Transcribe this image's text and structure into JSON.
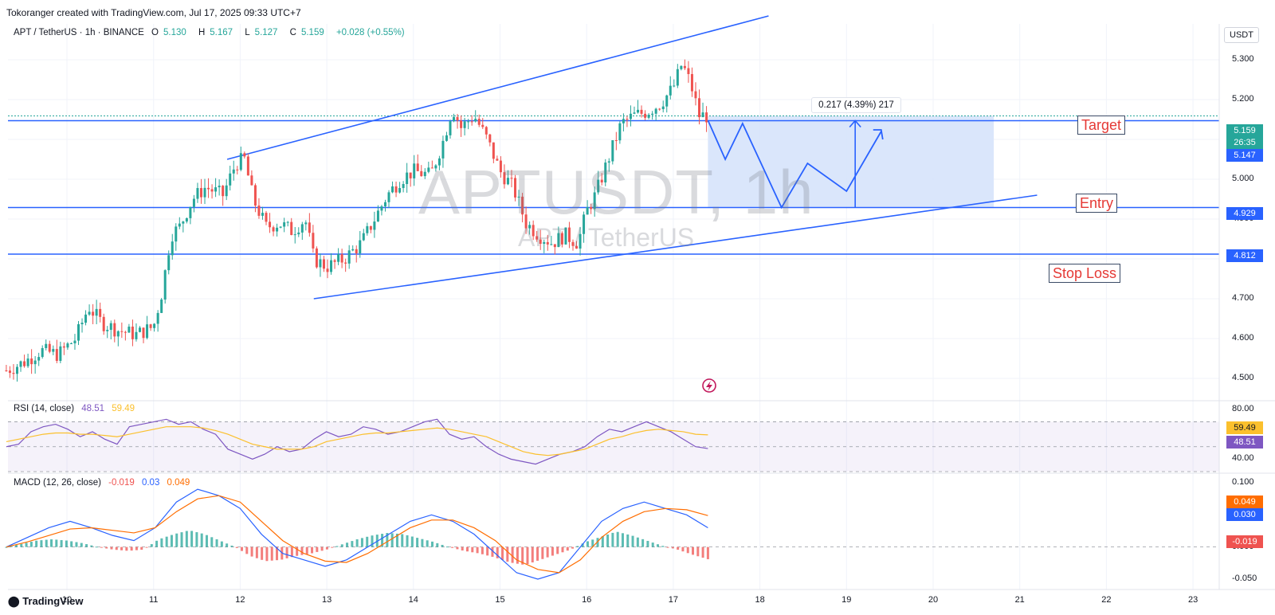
{
  "header": {
    "credit": "Tokoranger created with TradingView.com, Jul 17, 2025 09:33 UTC+7"
  },
  "symbol_legend": {
    "title": "APT / TetherUS · 1h · BINANCE",
    "open_label": "O",
    "open": "5.130",
    "high_label": "H",
    "high": "5.167",
    "low_label": "L",
    "low": "5.127",
    "close_label": "C",
    "close": "5.159",
    "change": "+0.028 (+0.55%)"
  },
  "currency_button": "USDT",
  "watermark": {
    "symbol": "APTUSDT, 1h",
    "description": "APT / TetherUS"
  },
  "annotations": {
    "target": "Target",
    "entry": "Entry",
    "stop_loss": "Stop Loss",
    "measure": "0.217 (4.39%) 217"
  },
  "price_tags": {
    "last": "5.159",
    "countdown": "26:35",
    "prev": "5.147",
    "entry": "4.929",
    "stop": "4.812",
    "rsi_ma": "59.49",
    "rsi": "48.51",
    "macd_signal": "0.049",
    "macd": "0.030",
    "macd_hist": "-0.019"
  },
  "colors": {
    "up": "#26a69a",
    "down": "#ef5350",
    "line": "#2962ff",
    "target_zone": "#d6e3fb",
    "rsi": "#7e57c2",
    "rsi_ma": "#fbc02d",
    "macd": "#2962ff",
    "signal": "#ff6d00",
    "label_red": "#e53935"
  },
  "icons": {
    "trading_view_logo": "tradingview-logo-icon",
    "flash": "flash-icon"
  },
  "footer": {
    "logo": "TradingView"
  },
  "chart_data": [
    {
      "type": "candlestick",
      "title": "APT / TetherUS · 1h · BINANCE",
      "y_axis_ticks": [
        "5.300",
        "5.200",
        "5.100",
        "5.000",
        "4.900",
        "4.800",
        "4.700",
        "4.600",
        "4.500"
      ],
      "x_axis_ticks": [
        "10",
        "11",
        "12",
        "13",
        "14",
        "15",
        "16",
        "17",
        "18",
        "19",
        "20",
        "21",
        "22",
        "23"
      ],
      "ylim": [
        4.45,
        5.37
      ],
      "close_path": [
        [
          9.3,
          4.52
        ],
        [
          9.5,
          4.54
        ],
        [
          9.7,
          4.57
        ],
        [
          9.9,
          4.56
        ],
        [
          10.1,
          4.6
        ],
        [
          10.25,
          4.68
        ],
        [
          10.4,
          4.64
        ],
        [
          10.6,
          4.62
        ],
        [
          10.8,
          4.61
        ],
        [
          11.0,
          4.63
        ],
        [
          11.1,
          4.72
        ],
        [
          11.2,
          4.86
        ],
        [
          11.3,
          4.88
        ],
        [
          11.45,
          4.95
        ],
        [
          11.6,
          4.98
        ],
        [
          11.8,
          4.96
        ],
        [
          11.95,
          5.04
        ],
        [
          12.05,
          5.05
        ],
        [
          12.15,
          4.95
        ],
        [
          12.3,
          4.88
        ],
        [
          12.45,
          4.89
        ],
        [
          12.6,
          4.87
        ],
        [
          12.75,
          4.9
        ],
        [
          12.85,
          4.8
        ],
        [
          13.0,
          4.78
        ],
        [
          13.2,
          4.8
        ],
        [
          13.4,
          4.84
        ],
        [
          13.55,
          4.9
        ],
        [
          13.7,
          4.96
        ],
        [
          13.85,
          5.0
        ],
        [
          14.0,
          5.02
        ],
        [
          14.2,
          5.01
        ],
        [
          14.35,
          5.1
        ],
        [
          14.45,
          5.18
        ],
        [
          14.55,
          5.13
        ],
        [
          14.7,
          5.16
        ],
        [
          14.85,
          5.1
        ],
        [
          15.0,
          5.02
        ],
        [
          15.15,
          4.98
        ],
        [
          15.3,
          4.89
        ],
        [
          15.45,
          4.86
        ],
        [
          15.6,
          4.84
        ],
        [
          15.75,
          4.86
        ],
        [
          15.9,
          4.84
        ],
        [
          16.0,
          4.92
        ],
        [
          16.1,
          4.96
        ],
        [
          16.25,
          5.05
        ],
        [
          16.4,
          5.14
        ],
        [
          16.55,
          5.16
        ],
        [
          16.7,
          5.17
        ],
        [
          16.85,
          5.19
        ],
        [
          17.0,
          5.23
        ],
        [
          17.1,
          5.29
        ],
        [
          17.2,
          5.24
        ],
        [
          17.3,
          5.16
        ],
        [
          17.4,
          5.159
        ]
      ],
      "levels": {
        "target": 5.147,
        "entry": 4.929,
        "stop_loss": 4.812,
        "last": 5.159
      },
      "target_zone": {
        "x": [
          17.4,
          20.7
        ],
        "y": [
          4.929,
          5.159
        ]
      },
      "upper_channel": [
        [
          11.85,
          5.05
        ],
        [
          18.1,
          5.41
        ]
      ],
      "lower_channel": [
        [
          12.85,
          4.7
        ],
        [
          21.2,
          4.96
        ]
      ],
      "projected_path": [
        [
          17.4,
          5.148
        ],
        [
          17.6,
          5.05
        ],
        [
          17.8,
          5.14
        ],
        [
          18.25,
          4.929
        ],
        [
          18.55,
          5.04
        ],
        [
          19.0,
          4.97
        ],
        [
          19.4,
          5.12
        ]
      ],
      "measure": {
        "from": 4.929,
        "to": 5.147,
        "text": "0.217 (4.39%) 217"
      }
    },
    {
      "type": "line",
      "title": "RSI (14, close)",
      "series": [
        {
          "name": "RSI",
          "last": 48.51,
          "values": [
            50,
            52,
            62,
            66,
            68,
            64,
            58,
            62,
            56,
            52,
            66,
            68,
            70,
            72,
            68,
            70,
            64,
            60,
            48,
            44,
            40,
            44,
            50,
            46,
            48,
            56,
            62,
            58,
            60,
            66,
            64,
            60,
            62,
            66,
            70,
            72,
            60,
            56,
            58,
            50,
            44,
            40,
            38,
            36,
            40,
            44,
            46,
            50,
            58,
            64,
            62,
            66,
            70,
            66,
            62,
            56,
            50,
            48.51
          ]
        },
        {
          "name": "RSI MA",
          "last": 59.49,
          "values": [
            54,
            56,
            58,
            60,
            61,
            61,
            60,
            60,
            59,
            58,
            60,
            62,
            64,
            66,
            66,
            66,
            65,
            63,
            60,
            56,
            52,
            50,
            48,
            48,
            48,
            50,
            54,
            56,
            58,
            60,
            61,
            61,
            62,
            63,
            64,
            65,
            64,
            62,
            60,
            58,
            54,
            50,
            46,
            44,
            43,
            44,
            46,
            48,
            52,
            56,
            58,
            61,
            63,
            64,
            63,
            62,
            60,
            59.49
          ]
        }
      ],
      "y_axis_ticks": [
        "80.00",
        "40.00"
      ],
      "ylim": [
        30,
        85
      ]
    },
    {
      "type": "line",
      "title": "MACD (12, 26, close)",
      "series": [
        {
          "name": "histogram",
          "last": -0.019,
          "values": [
            0.0,
            0.005,
            0.01,
            0.012,
            0.01,
            0.006,
            0.0,
            -0.004,
            -0.006,
            -0.004,
            0.012,
            0.02,
            0.026,
            0.02,
            0.01,
            0.0,
            -0.014,
            -0.022,
            -0.02,
            -0.014,
            -0.01,
            -0.004,
            0.004,
            0.012,
            0.018,
            0.022,
            0.02,
            0.014,
            0.008,
            0.0,
            -0.006,
            -0.01,
            -0.016,
            -0.024,
            -0.028,
            -0.02,
            -0.012,
            -0.004,
            0.008,
            0.016,
            0.024,
            0.018,
            0.01,
            0.002,
            -0.004,
            -0.012,
            -0.019
          ]
        },
        {
          "name": "MACD",
          "last": 0.03,
          "values": [
            0.0,
            0.015,
            0.03,
            0.04,
            0.03,
            0.018,
            0.01,
            0.03,
            0.07,
            0.09,
            0.08,
            0.06,
            0.02,
            -0.01,
            -0.02,
            -0.03,
            -0.02,
            0.0,
            0.02,
            0.04,
            0.05,
            0.04,
            0.02,
            -0.01,
            -0.04,
            -0.05,
            -0.04,
            0.0,
            0.04,
            0.06,
            0.07,
            0.06,
            0.05,
            0.03
          ]
        },
        {
          "name": "Signal",
          "last": 0.049,
          "values": [
            0.0,
            0.008,
            0.018,
            0.028,
            0.03,
            0.026,
            0.022,
            0.03,
            0.055,
            0.075,
            0.08,
            0.07,
            0.04,
            0.01,
            -0.01,
            -0.022,
            -0.024,
            -0.01,
            0.01,
            0.03,
            0.042,
            0.042,
            0.03,
            0.01,
            -0.02,
            -0.035,
            -0.04,
            -0.02,
            0.015,
            0.04,
            0.055,
            0.06,
            0.058,
            0.049
          ]
        }
      ],
      "y_axis_ticks": [
        "0.100",
        "0.050",
        "0.000",
        "-0.050"
      ],
      "ylim": [
        -0.06,
        0.11
      ]
    }
  ]
}
